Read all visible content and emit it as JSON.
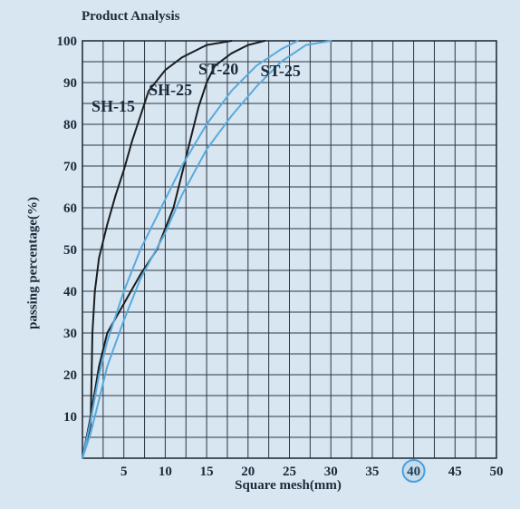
{
  "chart_data": {
    "type": "line",
    "title": "Product Analysis",
    "xlabel": "Square mesh(mm)",
    "ylabel": "passing percentage(%)",
    "xlim": [
      0,
      50
    ],
    "ylim": [
      0,
      100
    ],
    "xticks": [
      5,
      10,
      15,
      20,
      25,
      30,
      35,
      40,
      45,
      50
    ],
    "yticks": [
      10,
      20,
      30,
      40,
      50,
      60,
      70,
      80,
      90,
      100
    ],
    "highlighted_xtick": 40,
    "grid": true,
    "series": [
      {
        "name": "SH-15",
        "color": "#1a1d22",
        "points": [
          [
            0,
            0
          ],
          [
            1,
            8
          ],
          [
            1.2,
            30
          ],
          [
            1.5,
            40
          ],
          [
            2,
            48
          ],
          [
            3,
            56
          ],
          [
            4,
            63
          ],
          [
            5,
            69
          ],
          [
            6,
            76
          ],
          [
            7,
            82
          ],
          [
            8,
            88
          ],
          [
            10,
            93
          ],
          [
            12,
            96
          ],
          [
            15,
            99
          ],
          [
            18,
            100
          ]
        ]
      },
      {
        "name": "SH-25",
        "color": "#1a1d22",
        "points": [
          [
            0,
            0
          ],
          [
            1,
            10
          ],
          [
            2,
            22
          ],
          [
            3,
            30
          ],
          [
            5,
            37
          ],
          [
            7,
            44
          ],
          [
            9,
            50
          ],
          [
            10,
            55
          ],
          [
            11,
            60
          ],
          [
            12,
            68
          ],
          [
            13,
            76
          ],
          [
            14,
            84
          ],
          [
            15,
            90
          ],
          [
            16,
            94
          ],
          [
            18,
            97
          ],
          [
            20,
            99
          ],
          [
            22,
            100
          ]
        ]
      },
      {
        "name": "ST-20",
        "color": "#5aa9dc",
        "points": [
          [
            0,
            0
          ],
          [
            1,
            9
          ],
          [
            2,
            20
          ],
          [
            3,
            28
          ],
          [
            5,
            40
          ],
          [
            7,
            50
          ],
          [
            10,
            62
          ],
          [
            12,
            70
          ],
          [
            15,
            80
          ],
          [
            18,
            88
          ],
          [
            21,
            94
          ],
          [
            24,
            98
          ],
          [
            26,
            100
          ]
        ]
      },
      {
        "name": "ST-25",
        "color": "#5aa9dc",
        "points": [
          [
            0,
            0
          ],
          [
            1,
            6
          ],
          [
            2,
            14
          ],
          [
            3,
            22
          ],
          [
            5,
            33
          ],
          [
            7,
            43
          ],
          [
            10,
            54
          ],
          [
            12,
            63
          ],
          [
            15,
            74
          ],
          [
            18,
            82
          ],
          [
            21,
            89
          ],
          [
            24,
            95
          ],
          [
            27,
            99
          ],
          [
            30,
            100
          ]
        ]
      }
    ],
    "series_labels": [
      "SH-15",
      "SH-25",
      "ST-20",
      "ST-25"
    ]
  }
}
